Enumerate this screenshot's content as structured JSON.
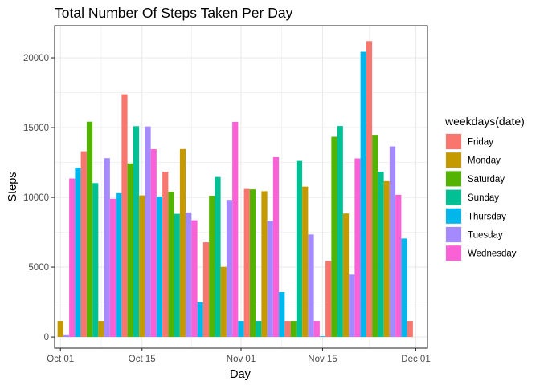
{
  "chart_data": {
    "type": "bar",
    "title": "Total Number Of Steps Taken Per Day",
    "xlabel": "Day",
    "ylabel": "Steps",
    "x_tick_labels": [
      "Oct 01",
      "Oct 15",
      "Nov 01",
      "Nov 15",
      "Dec 01"
    ],
    "x_ticks": [
      "2012-10-01",
      "2012-10-15",
      "2012-11-01",
      "2012-11-15",
      "2012-12-01"
    ],
    "xlim": [
      "2012-09-30",
      "2012-12-03"
    ],
    "y_ticks": [
      0,
      5000,
      10000,
      15000,
      20000
    ],
    "ylim": [
      -800,
      22300
    ],
    "grid": true,
    "legend": {
      "title": "weekdays(date)",
      "position": "right",
      "entries": [
        {
          "label": "Friday",
          "color": "#F8766D"
        },
        {
          "label": "Monday",
          "color": "#C49A00"
        },
        {
          "label": "Saturday",
          "color": "#53B400"
        },
        {
          "label": "Sunday",
          "color": "#00C094"
        },
        {
          "label": "Thursday",
          "color": "#00B6EB"
        },
        {
          "label": "Tuesday",
          "color": "#A58AFF"
        },
        {
          "label": "Wednesday",
          "color": "#FB61D7"
        }
      ]
    },
    "points": [
      {
        "date": "2012-10-01",
        "weekday": "Monday",
        "steps": 1150
      },
      {
        "date": "2012-10-02",
        "weekday": "Tuesday",
        "steps": 130
      },
      {
        "date": "2012-10-03",
        "weekday": "Wednesday",
        "steps": 11350
      },
      {
        "date": "2012-10-04",
        "weekday": "Thursday",
        "steps": 12120
      },
      {
        "date": "2012-10-05",
        "weekday": "Friday",
        "steps": 13300
      },
      {
        "date": "2012-10-06",
        "weekday": "Saturday",
        "steps": 15420
      },
      {
        "date": "2012-10-07",
        "weekday": "Sunday",
        "steps": 11020
      },
      {
        "date": "2012-10-08",
        "weekday": "Monday",
        "steps": 1150
      },
      {
        "date": "2012-10-09",
        "weekday": "Tuesday",
        "steps": 12810
      },
      {
        "date": "2012-10-10",
        "weekday": "Wednesday",
        "steps": 9900
      },
      {
        "date": "2012-10-11",
        "weekday": "Thursday",
        "steps": 10300
      },
      {
        "date": "2012-10-12",
        "weekday": "Friday",
        "steps": 17380
      },
      {
        "date": "2012-10-13",
        "weekday": "Saturday",
        "steps": 12430
      },
      {
        "date": "2012-10-14",
        "weekday": "Sunday",
        "steps": 15100
      },
      {
        "date": "2012-10-15",
        "weekday": "Monday",
        "steps": 10140
      },
      {
        "date": "2012-10-16",
        "weekday": "Tuesday",
        "steps": 15080
      },
      {
        "date": "2012-10-17",
        "weekday": "Wednesday",
        "steps": 13450
      },
      {
        "date": "2012-10-18",
        "weekday": "Thursday",
        "steps": 10060
      },
      {
        "date": "2012-10-19",
        "weekday": "Friday",
        "steps": 11830
      },
      {
        "date": "2012-10-20",
        "weekday": "Saturday",
        "steps": 10400
      },
      {
        "date": "2012-10-21",
        "weekday": "Sunday",
        "steps": 8820
      },
      {
        "date": "2012-10-22",
        "weekday": "Monday",
        "steps": 13460
      },
      {
        "date": "2012-10-23",
        "weekday": "Tuesday",
        "steps": 8920
      },
      {
        "date": "2012-10-24",
        "weekday": "Wednesday",
        "steps": 8360
      },
      {
        "date": "2012-10-25",
        "weekday": "Thursday",
        "steps": 2490
      },
      {
        "date": "2012-10-26",
        "weekday": "Friday",
        "steps": 6780
      },
      {
        "date": "2012-10-27",
        "weekday": "Saturday",
        "steps": 10120
      },
      {
        "date": "2012-10-28",
        "weekday": "Sunday",
        "steps": 11460
      },
      {
        "date": "2012-10-29",
        "weekday": "Monday",
        "steps": 5020
      },
      {
        "date": "2012-10-30",
        "weekday": "Tuesday",
        "steps": 9820
      },
      {
        "date": "2012-10-31",
        "weekday": "Wednesday",
        "steps": 15410
      },
      {
        "date": "2012-11-01",
        "weekday": "Thursday",
        "steps": 1150
      },
      {
        "date": "2012-11-02",
        "weekday": "Friday",
        "steps": 10600
      },
      {
        "date": "2012-11-03",
        "weekday": "Saturday",
        "steps": 10570
      },
      {
        "date": "2012-11-04",
        "weekday": "Sunday",
        "steps": 1150
      },
      {
        "date": "2012-11-05",
        "weekday": "Monday",
        "steps": 10440
      },
      {
        "date": "2012-11-06",
        "weekday": "Tuesday",
        "steps": 8330
      },
      {
        "date": "2012-11-07",
        "weekday": "Wednesday",
        "steps": 12880
      },
      {
        "date": "2012-11-08",
        "weekday": "Thursday",
        "steps": 3220
      },
      {
        "date": "2012-11-09",
        "weekday": "Friday",
        "steps": 1150
      },
      {
        "date": "2012-11-10",
        "weekday": "Saturday",
        "steps": 1150
      },
      {
        "date": "2012-11-11",
        "weekday": "Sunday",
        "steps": 12610
      },
      {
        "date": "2012-11-12",
        "weekday": "Monday",
        "steps": 10770
      },
      {
        "date": "2012-11-13",
        "weekday": "Tuesday",
        "steps": 7340
      },
      {
        "date": "2012-11-14",
        "weekday": "Wednesday",
        "steps": 1150
      },
      {
        "date": "2012-11-15",
        "weekday": "Thursday",
        "steps": 50
      },
      {
        "date": "2012-11-16",
        "weekday": "Friday",
        "steps": 5440
      },
      {
        "date": "2012-11-17",
        "weekday": "Saturday",
        "steps": 14340
      },
      {
        "date": "2012-11-18",
        "weekday": "Sunday",
        "steps": 15110
      },
      {
        "date": "2012-11-19",
        "weekday": "Monday",
        "steps": 8840
      },
      {
        "date": "2012-11-20",
        "weekday": "Tuesday",
        "steps": 4470
      },
      {
        "date": "2012-11-21",
        "weekday": "Wednesday",
        "steps": 12790
      },
      {
        "date": "2012-11-22",
        "weekday": "Thursday",
        "steps": 20430
      },
      {
        "date": "2012-11-23",
        "weekday": "Friday",
        "steps": 21190
      },
      {
        "date": "2012-11-24",
        "weekday": "Saturday",
        "steps": 14480
      },
      {
        "date": "2012-11-25",
        "weekday": "Sunday",
        "steps": 11830
      },
      {
        "date": "2012-11-26",
        "weekday": "Monday",
        "steps": 11160
      },
      {
        "date": "2012-11-27",
        "weekday": "Tuesday",
        "steps": 13650
      },
      {
        "date": "2012-11-28",
        "weekday": "Wednesday",
        "steps": 10180
      },
      {
        "date": "2012-11-29",
        "weekday": "Thursday",
        "steps": 7050
      },
      {
        "date": "2012-11-30",
        "weekday": "Friday",
        "steps": 1150
      }
    ]
  }
}
